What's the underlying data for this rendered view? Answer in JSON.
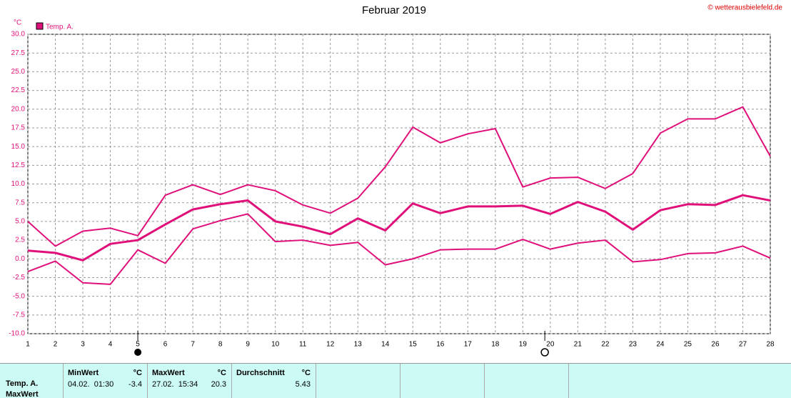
{
  "chart_data": {
    "type": "line",
    "title": "Februar 2019",
    "credit": "© wetterausbielefeld.de",
    "y_unit": "°C",
    "legend": "Temp. A.",
    "legend_color": "#e0107a",
    "grid": true,
    "x": [
      1,
      2,
      3,
      4,
      5,
      6,
      7,
      8,
      9,
      10,
      11,
      12,
      13,
      14,
      15,
      16,
      17,
      18,
      19,
      20,
      21,
      22,
      23,
      24,
      25,
      26,
      27,
      28
    ],
    "xlim": [
      1,
      28
    ],
    "xticks": [
      1,
      2,
      3,
      4,
      5,
      6,
      7,
      8,
      9,
      10,
      11,
      12,
      13,
      14,
      15,
      16,
      17,
      18,
      19,
      20,
      21,
      22,
      23,
      24,
      25,
      26,
      27,
      28
    ],
    "ylim": [
      -10,
      30
    ],
    "yticks": [
      {
        "value": -10,
        "label": "-10.0"
      },
      -7.5,
      {
        "value": -5,
        "label": "-5.0"
      },
      -2.5,
      {
        "value": 0,
        "label": "0.0"
      },
      2.5,
      {
        "value": 5,
        "label": "5.0"
      },
      7.5,
      {
        "value": 10,
        "label": "10.0"
      },
      12.5,
      {
        "value": 15,
        "label": "15.0"
      },
      17.5,
      {
        "value": 20,
        "label": "20.0"
      },
      22.5,
      {
        "value": 25,
        "label": "25.0"
      },
      27.5,
      {
        "value": 30,
        "label": "30.0"
      }
    ],
    "new_moon_x": 5,
    "full_moon_x": 19.8,
    "series": [
      {
        "color": "#e0107a",
        "values": [
          5.0,
          1.7,
          3.7,
          4.1,
          3.1,
          8.5,
          9.9,
          8.6,
          9.9,
          9.1,
          7.2,
          6.1,
          8.1,
          12.3,
          17.6,
          15.5,
          16.7,
          17.4,
          9.6,
          10.8,
          10.9,
          9.4,
          11.4,
          16.8,
          18.7,
          18.7,
          20.3,
          13.7
        ]
      },
      {
        "color": "#e0107a",
        "values": [
          1.1,
          0.8,
          -0.2,
          2.0,
          2.5,
          4.6,
          6.6,
          7.3,
          7.8,
          5.0,
          4.3,
          3.3,
          5.4,
          3.8,
          7.4,
          6.1,
          7.0,
          7.0,
          7.1,
          6.0,
          7.6,
          6.3,
          3.9,
          6.5,
          7.3,
          7.2,
          8.5,
          7.8
        ]
      },
      {
        "color": "#e0107a",
        "values": [
          -1.7,
          -0.3,
          -3.2,
          -3.4,
          1.2,
          -0.6,
          4.0,
          5.1,
          6.0,
          2.3,
          2.5,
          1.8,
          2.2,
          -0.8,
          0.0,
          1.2,
          1.3,
          1.3,
          2.6,
          1.3,
          2.1,
          2.5,
          -0.4,
          -0.1,
          0.7,
          0.8,
          1.7,
          0.1
        ]
      }
    ]
  },
  "stats_table": {
    "row_labels": [
      "Temp. A.",
      "MaxWert"
    ],
    "columns": [
      {
        "header": "MinWert",
        "unit": "°C",
        "time": "04.02.  01:30",
        "value": -3.4
      },
      {
        "header": "MaxWert",
        "unit": "°C",
        "time": "27.02.  15:34",
        "value": 20.3
      },
      {
        "header": "Durchschnitt",
        "unit": "°C",
        "value": 5.43
      }
    ]
  }
}
